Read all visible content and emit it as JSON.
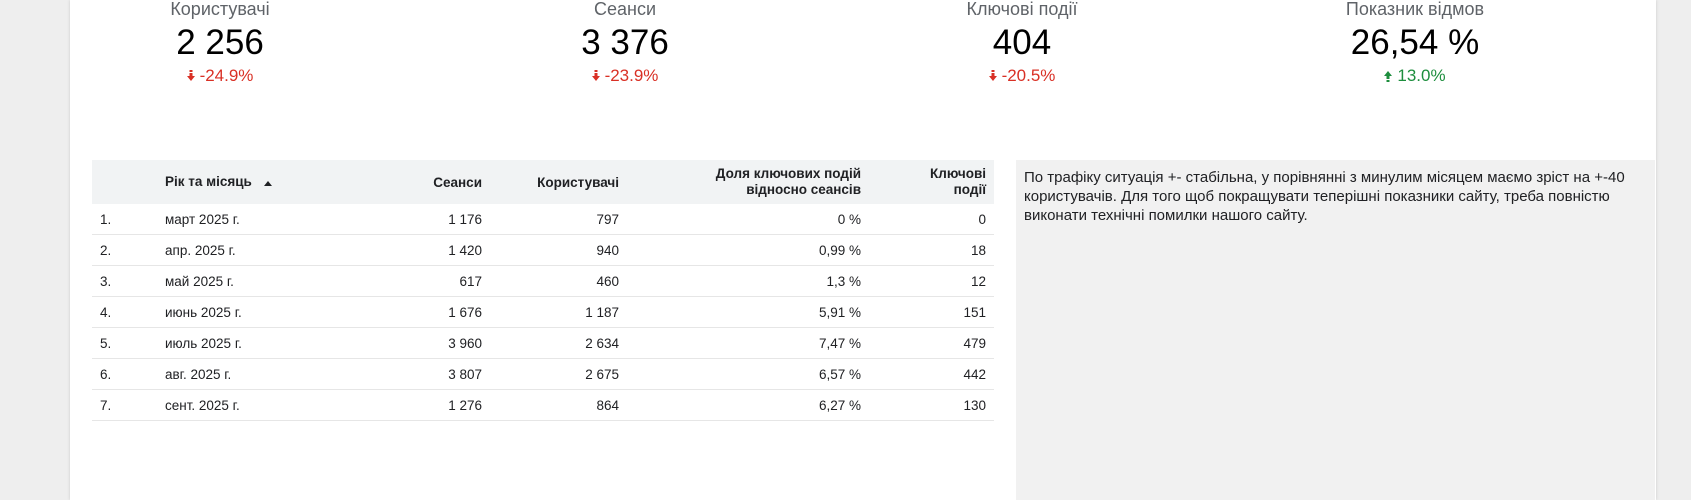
{
  "kpis": [
    {
      "label": "Користувачі",
      "value": "2 256",
      "delta": "-24.9%",
      "direction": "down"
    },
    {
      "label": "Сеанси",
      "value": "3 376",
      "delta": "-23.9%",
      "direction": "down"
    },
    {
      "label": "Ключові події",
      "value": "404",
      "delta": "-20.5%",
      "direction": "down"
    },
    {
      "label": "Показник відмов",
      "value": "26,54 %",
      "delta": "13.0%",
      "direction": "up"
    }
  ],
  "table": {
    "headers": {
      "month": "Рік та місяць",
      "sessions": "Сеанси",
      "users": "Користувачі",
      "rate_line1": "Доля ключових подій",
      "rate_line2": "відносно сеансів",
      "conv_line1": "Ключові",
      "conv_line2": "події"
    },
    "rows": [
      {
        "idx": "1.",
        "month": "март 2025 г.",
        "sessions": "1 176",
        "users": "797",
        "rate": "0 %",
        "conv": "0"
      },
      {
        "idx": "2.",
        "month": "апр. 2025 г.",
        "sessions": "1 420",
        "users": "940",
        "rate": "0,99 %",
        "conv": "18"
      },
      {
        "idx": "3.",
        "month": "май 2025 г.",
        "sessions": "617",
        "users": "460",
        "rate": "1,3 %",
        "conv": "12"
      },
      {
        "idx": "4.",
        "month": "июнь 2025 г.",
        "sessions": "1 676",
        "users": "1 187",
        "rate": "5,91 %",
        "conv": "151"
      },
      {
        "idx": "5.",
        "month": "июль 2025 г.",
        "sessions": "3 960",
        "users": "2 634",
        "rate": "7,47 %",
        "conv": "479"
      },
      {
        "idx": "6.",
        "month": "авг. 2025 г.",
        "sessions": "3 807",
        "users": "2 675",
        "rate": "6,57 %",
        "conv": "442"
      },
      {
        "idx": "7.",
        "month": "сент. 2025 г.",
        "sessions": "1 276",
        "users": "864",
        "rate": "6,27 %",
        "conv": "130"
      }
    ]
  },
  "note": {
    "text": "По трафіку ситуація +- стабільна, у порівнянні з минулим місяцем маємо зріст на +-40 користувачів. Для того щоб покращувати теперішні показники сайту, треба повністю виконати технічні помилки нашого сайту."
  },
  "colors": {
    "down": "#d93025",
    "up": "#1e8e3e"
  },
  "icons": {
    "down": "arrow-down-icon",
    "up": "arrow-up-icon",
    "sort": "sort-ascending-icon"
  }
}
